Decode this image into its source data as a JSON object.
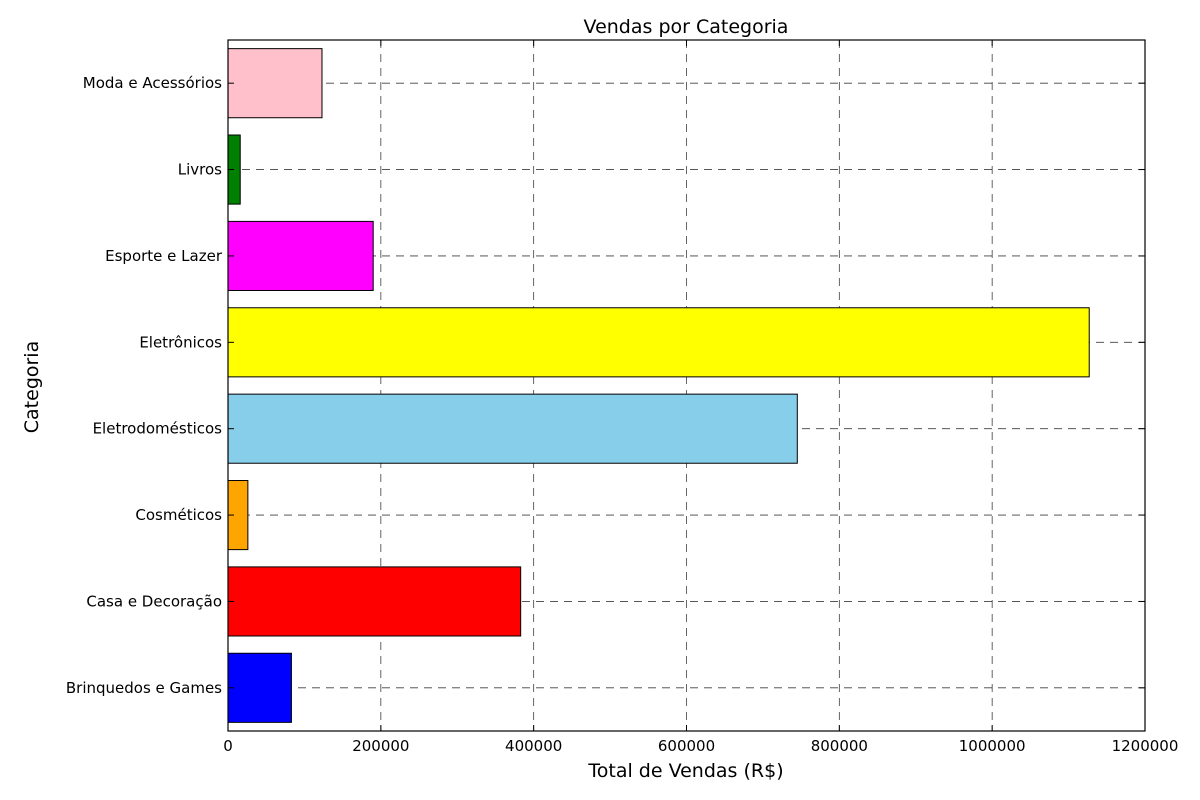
{
  "chart_data": {
    "type": "bar",
    "orientation": "horizontal",
    "title": "Vendas por Categoria",
    "xlabel": "Total de Vendas (R$)",
    "ylabel": "Categoria",
    "xlim": [
      0,
      1200000
    ],
    "xticks": [
      0,
      200000,
      400000,
      600000,
      800000,
      1000000,
      1200000
    ],
    "xtick_labels": [
      "0",
      "200000",
      "400000",
      "600000",
      "800000",
      "1000000",
      "1200000"
    ],
    "grid": true,
    "categories": [
      "Brinquedos e Games",
      "Casa e Decoração",
      "Cosméticos",
      "Eletrodomésticos",
      "Eletrônicos",
      "Esporte e Lazer",
      "Livros",
      "Moda e Acessórios"
    ],
    "values": [
      83000,
      383000,
      26000,
      745000,
      1127000,
      190000,
      16000,
      123000
    ],
    "colors": [
      "#0000ff",
      "#ff0000",
      "#ffa500",
      "#87ceeb",
      "#ffff00",
      "#ff00ff",
      "#008000",
      "#ffc0cb"
    ]
  }
}
